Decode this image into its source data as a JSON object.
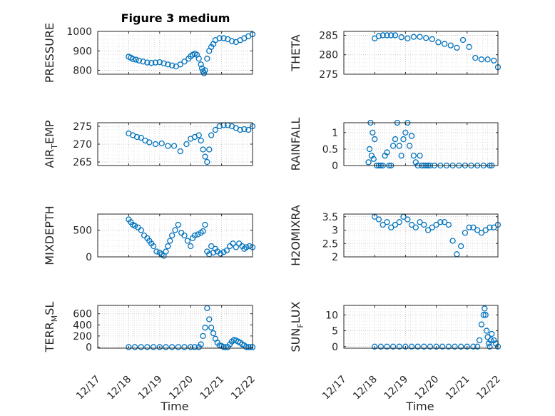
{
  "figure_title": "Figure 3 medium",
  "colors": {
    "marker": "#0072BD",
    "axis": "#262626"
  },
  "chart_data": [
    {
      "type": "scatter",
      "ylabel": "PRESSURE",
      "ylim": [
        780,
        1000
      ],
      "yticks": [
        "1000",
        "900",
        "800"
      ],
      "ytick_values": [
        1000,
        900,
        800
      ],
      "x": [
        0.0,
        0.1,
        0.2,
        0.35,
        0.5,
        0.7,
        0.9,
        1.1,
        1.3,
        1.5,
        1.7,
        1.9,
        2.1,
        2.3,
        2.5,
        2.7,
        2.9,
        3.0,
        3.1,
        3.2,
        3.3,
        3.4,
        3.5,
        3.55,
        3.6,
        3.65,
        3.7,
        3.8,
        3.9,
        4.0,
        4.1,
        4.2,
        4.4,
        4.6,
        4.8,
        5.0,
        5.2,
        5.4,
        5.6,
        5.8,
        6.0
      ],
      "y": [
        870,
        865,
        858,
        855,
        850,
        845,
        840,
        838,
        840,
        842,
        836,
        830,
        825,
        820,
        830,
        845,
        860,
        872,
        880,
        885,
        880,
        860,
        830,
        810,
        795,
        785,
        800,
        860,
        900,
        920,
        935,
        955,
        965,
        965,
        960,
        950,
        945,
        955,
        965,
        975,
        985
      ],
      "xstart": 18.0,
      "xend": 22.0
    },
    {
      "type": "scatter",
      "ylabel": "THETA",
      "ylim": [
        275,
        286
      ],
      "yticks": [
        "285",
        "280",
        "275"
      ],
      "ytick_values": [
        285,
        280,
        275
      ],
      "x": [
        0.0,
        0.2,
        0.4,
        0.6,
        0.8,
        1.0,
        1.3,
        1.6,
        1.9,
        2.2,
        2.5,
        2.8,
        3.1,
        3.4,
        3.7,
        4.0,
        4.3,
        4.6,
        4.9,
        5.2,
        5.5,
        5.8,
        6.0
      ],
      "y": [
        284.2,
        284.8,
        285.0,
        285.0,
        285.0,
        285.0,
        284.5,
        284.2,
        284.6,
        284.6,
        284.3,
        284.0,
        283.2,
        282.8,
        282.4,
        281.8,
        283.8,
        282.0,
        279.2,
        278.8,
        278.8,
        278.5,
        276.8
      ],
      "xstart": 18.0,
      "xend": 22.0
    },
    {
      "type": "scatter",
      "ylabel": "AIR_TEMP",
      "ylim": [
        264,
        276
      ],
      "yticks": [
        "275",
        "270",
        "265"
      ],
      "ytick_values": [
        275,
        270,
        265
      ],
      "x": [
        0.0,
        0.2,
        0.4,
        0.6,
        0.8,
        1.0,
        1.3,
        1.6,
        1.9,
        2.2,
        2.5,
        2.8,
        3.0,
        3.2,
        3.4,
        3.5,
        3.6,
        3.7,
        3.8,
        3.9,
        4.0,
        4.2,
        4.4,
        4.6,
        4.8,
        5.0,
        5.2,
        5.4,
        5.6,
        5.8,
        6.0
      ],
      "y": [
        273.0,
        272.5,
        272.0,
        271.8,
        271.0,
        270.5,
        270.0,
        270.2,
        269.5,
        269.5,
        268.0,
        270.0,
        271.5,
        272.0,
        272.5,
        271.0,
        268.5,
        266.5,
        265.0,
        268.5,
        272.5,
        274.0,
        275.0,
        275.3,
        275.3,
        275.0,
        274.5,
        274.0,
        274.2,
        274.0,
        275.0
      ],
      "xstart": 18.0,
      "xend": 22.0
    },
    {
      "type": "scatter",
      "ylabel": "RAINFALL",
      "ylim": [
        0,
        1.3
      ],
      "yticks": [
        "1",
        "0.5",
        "0"
      ],
      "ytick_values": [
        1,
        0.5,
        0
      ],
      "x": [
        0.0,
        0.05,
        0.1,
        0.15,
        0.2,
        0.25,
        0.3,
        0.4,
        0.5,
        0.6,
        0.7,
        0.8,
        0.9,
        1.0,
        1.1,
        1.2,
        1.3,
        1.4,
        1.5,
        1.6,
        1.7,
        1.8,
        1.9,
        2.0,
        2.1,
        2.2,
        2.3,
        2.4,
        2.5,
        2.6,
        2.7,
        2.8,
        2.9,
        3.0,
        3.2,
        3.5,
        3.8,
        4.1,
        4.4,
        4.7,
        5.0,
        5.3,
        5.6,
        5.9,
        6.0
      ],
      "y": [
        0.1,
        0.5,
        1.3,
        0.3,
        1.0,
        0.2,
        0.8,
        0.0,
        0.0,
        0.0,
        0.0,
        0.3,
        0.4,
        0.0,
        0.0,
        0.6,
        0.8,
        1.3,
        0.6,
        0.3,
        0.8,
        1.0,
        1.3,
        0.6,
        0.9,
        0.3,
        0.1,
        0.0,
        0.3,
        0.0,
        0.0,
        0.0,
        0.0,
        0.0,
        0.0,
        0.0,
        0.0,
        0.0,
        0.0,
        0.0,
        0.0,
        0.0,
        0.0,
        0.0,
        0.0
      ],
      "xstart": 17.8,
      "xend": 21.8
    },
    {
      "type": "scatter",
      "ylabel": "MIXDEPTH",
      "ylim": [
        0,
        800
      ],
      "yticks": [
        "500",
        "0"
      ],
      "ytick_values": [
        500,
        0
      ],
      "x": [
        0.0,
        0.1,
        0.2,
        0.3,
        0.45,
        0.6,
        0.75,
        0.9,
        1.0,
        1.1,
        1.2,
        1.35,
        1.5,
        1.6,
        1.7,
        1.8,
        1.9,
        2.0,
        2.1,
        2.25,
        2.4,
        2.55,
        2.7,
        2.85,
        3.0,
        3.1,
        3.2,
        3.35,
        3.5,
        3.6,
        3.7,
        3.8,
        3.9,
        4.0,
        4.1,
        4.2,
        4.3,
        4.45,
        4.6,
        4.75,
        4.9,
        5.05,
        5.2,
        5.35,
        5.5,
        5.6,
        5.7,
        5.85,
        6.0
      ],
      "y": [
        700,
        650,
        600,
        580,
        550,
        500,
        400,
        350,
        300,
        250,
        200,
        100,
        80,
        50,
        20,
        100,
        200,
        300,
        400,
        500,
        600,
        450,
        400,
        300,
        200,
        350,
        400,
        420,
        450,
        480,
        600,
        100,
        50,
        200,
        80,
        150,
        100,
        60,
        90,
        120,
        200,
        250,
        180,
        250,
        200,
        150,
        180,
        200,
        180
      ],
      "xstart": 18.0,
      "xend": 22.0
    },
    {
      "type": "scatter",
      "ylabel": "H2OMIXRA",
      "ylim": [
        2,
        3.6
      ],
      "yticks": [
        "3.5",
        "3",
        "2.5",
        "2"
      ],
      "ytick_values": [
        3.5,
        3,
        2.5,
        2
      ],
      "x": [
        0.0,
        0.2,
        0.4,
        0.6,
        0.8,
        1.0,
        1.2,
        1.4,
        1.6,
        1.8,
        2.0,
        2.2,
        2.4,
        2.6,
        2.8,
        3.0,
        3.2,
        3.4,
        3.6,
        3.8,
        4.0,
        4.2,
        4.4,
        4.6,
        4.8,
        5.0,
        5.2,
        5.4,
        5.6,
        5.8,
        6.0
      ],
      "y": [
        3.5,
        3.4,
        3.2,
        3.3,
        3.1,
        3.2,
        3.3,
        3.5,
        3.4,
        3.2,
        3.1,
        3.3,
        3.2,
        3.0,
        3.1,
        3.2,
        3.3,
        3.3,
        3.2,
        2.6,
        2.1,
        2.4,
        2.9,
        3.1,
        3.1,
        3.0,
        2.9,
        3.0,
        3.1,
        3.1,
        3.2
      ],
      "xstart": 18.0,
      "xend": 22.0
    },
    {
      "type": "scatter",
      "ylabel": "TERR_MSL",
      "ylim": [
        -20,
        750
      ],
      "yticks": [
        "600",
        "400",
        "200",
        "0"
      ],
      "ytick_values": [
        600,
        400,
        200,
        0
      ],
      "x": [
        0.0,
        0.3,
        0.6,
        0.9,
        1.2,
        1.5,
        1.8,
        2.1,
        2.4,
        2.7,
        3.0,
        3.2,
        3.4,
        3.5,
        3.6,
        3.7,
        3.8,
        3.9,
        4.0,
        4.1,
        4.2,
        4.3,
        4.4,
        4.5,
        4.6,
        4.7,
        4.8,
        4.9,
        5.0,
        5.1,
        5.2,
        5.3,
        5.4,
        5.5,
        5.6,
        5.7,
        5.8,
        5.9,
        6.0
      ],
      "y": [
        0,
        0,
        0,
        0,
        0,
        0,
        0,
        0,
        0,
        0,
        0,
        0,
        0,
        50,
        200,
        350,
        700,
        500,
        350,
        250,
        150,
        80,
        30,
        20,
        0,
        0,
        0,
        50,
        100,
        130,
        120,
        100,
        80,
        50,
        30,
        0,
        0,
        0,
        0
      ],
      "xstart": 18.0,
      "xend": 22.0
    },
    {
      "type": "scatter",
      "ylabel": "SUN_FLUX",
      "ylim": [
        -0.5,
        13
      ],
      "yticks": [
        "10",
        "5",
        "0"
      ],
      "ytick_values": [
        10,
        5,
        0
      ],
      "x": [
        0.0,
        0.3,
        0.6,
        0.9,
        1.2,
        1.5,
        1.8,
        2.1,
        2.4,
        2.7,
        3.0,
        3.3,
        3.6,
        3.9,
        4.2,
        4.5,
        4.8,
        5.0,
        5.1,
        5.2,
        5.3,
        5.35,
        5.4,
        5.45,
        5.5,
        5.55,
        5.6,
        5.65,
        5.7,
        5.8,
        5.9,
        6.0
      ],
      "y": [
        0,
        0,
        0,
        0,
        0,
        0,
        0,
        0,
        0,
        0,
        0,
        0,
        0,
        0,
        0,
        0,
        0,
        0,
        2,
        7,
        10,
        12,
        10,
        5,
        3,
        1,
        0,
        2,
        4,
        2,
        1,
        0
      ],
      "xstart": 18.0,
      "xend": 22.0
    }
  ],
  "xaxis": {
    "xlim": [
      17,
      22
    ],
    "xticks": [
      "12/17",
      "12/18",
      "12/19",
      "12/20",
      "12/21",
      "12/22"
    ],
    "xtick_values": [
      17,
      18,
      19,
      20,
      21,
      22
    ],
    "xlabel_left": "Time",
    "xlabel_right": "Time"
  }
}
